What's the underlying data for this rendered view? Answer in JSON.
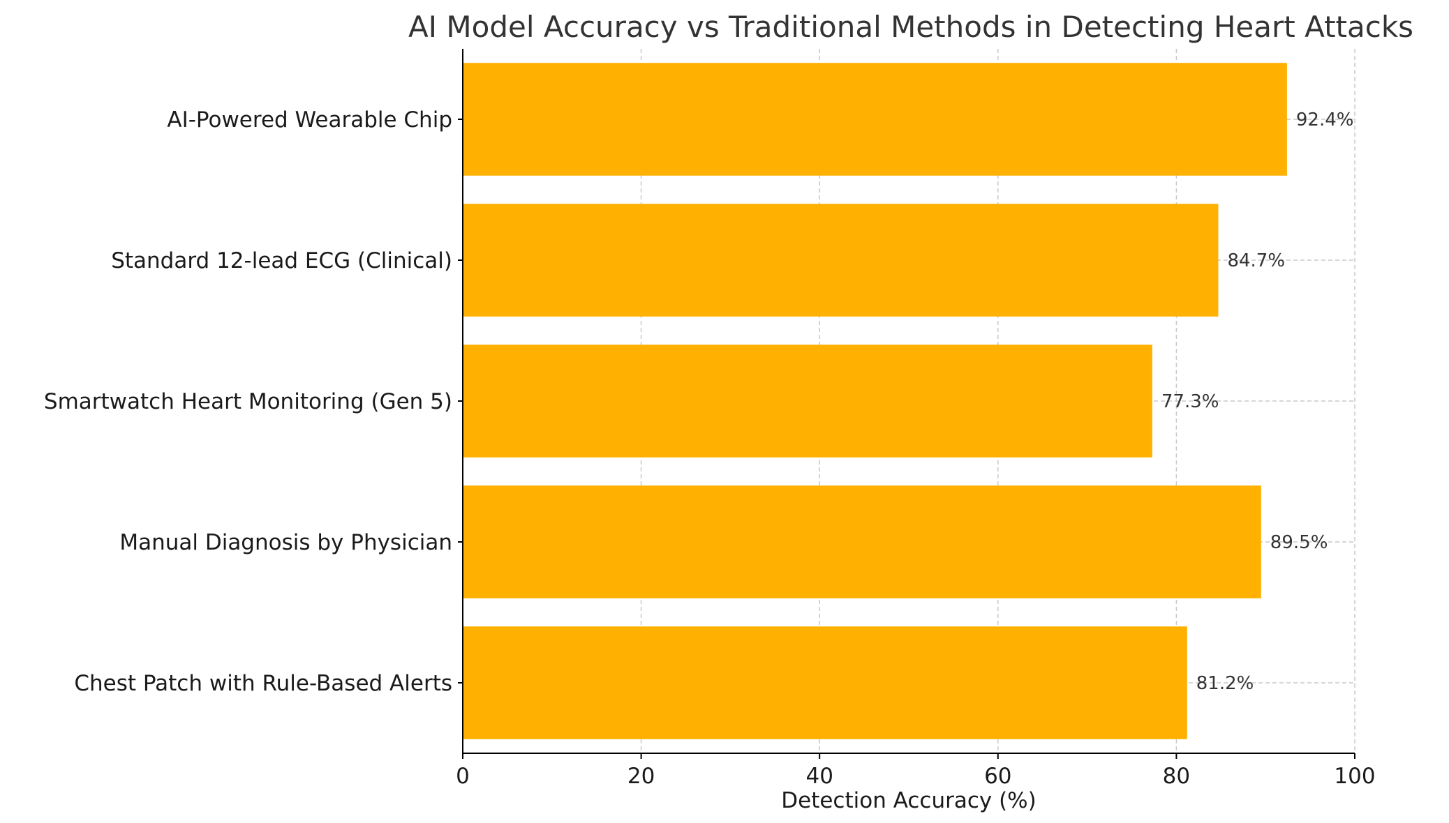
{
  "chart_data": {
    "type": "bar",
    "orientation": "horizontal",
    "title": "AI Model Accuracy vs Traditional Methods in Detecting Heart Attacks",
    "xlabel": "Detection Accuracy (%)",
    "ylabel": "",
    "xlim": [
      0,
      100
    ],
    "xticks": [
      "0",
      "20",
      "40",
      "60",
      "80",
      "100"
    ],
    "categories": [
      "AI-Powered Wearable Chip",
      "Standard 12-lead ECG (Clinical)",
      "Smartwatch Heart Monitoring (Gen 5)",
      "Manual Diagnosis by Physician",
      "Chest Patch with Rule-Based Alerts"
    ],
    "values": [
      92.4,
      84.7,
      77.3,
      89.5,
      81.2
    ],
    "value_labels": [
      "92.4%",
      "84.7%",
      "77.3%",
      "89.5%",
      "81.2%"
    ],
    "grid": true,
    "bar_color": "#FFB000"
  }
}
